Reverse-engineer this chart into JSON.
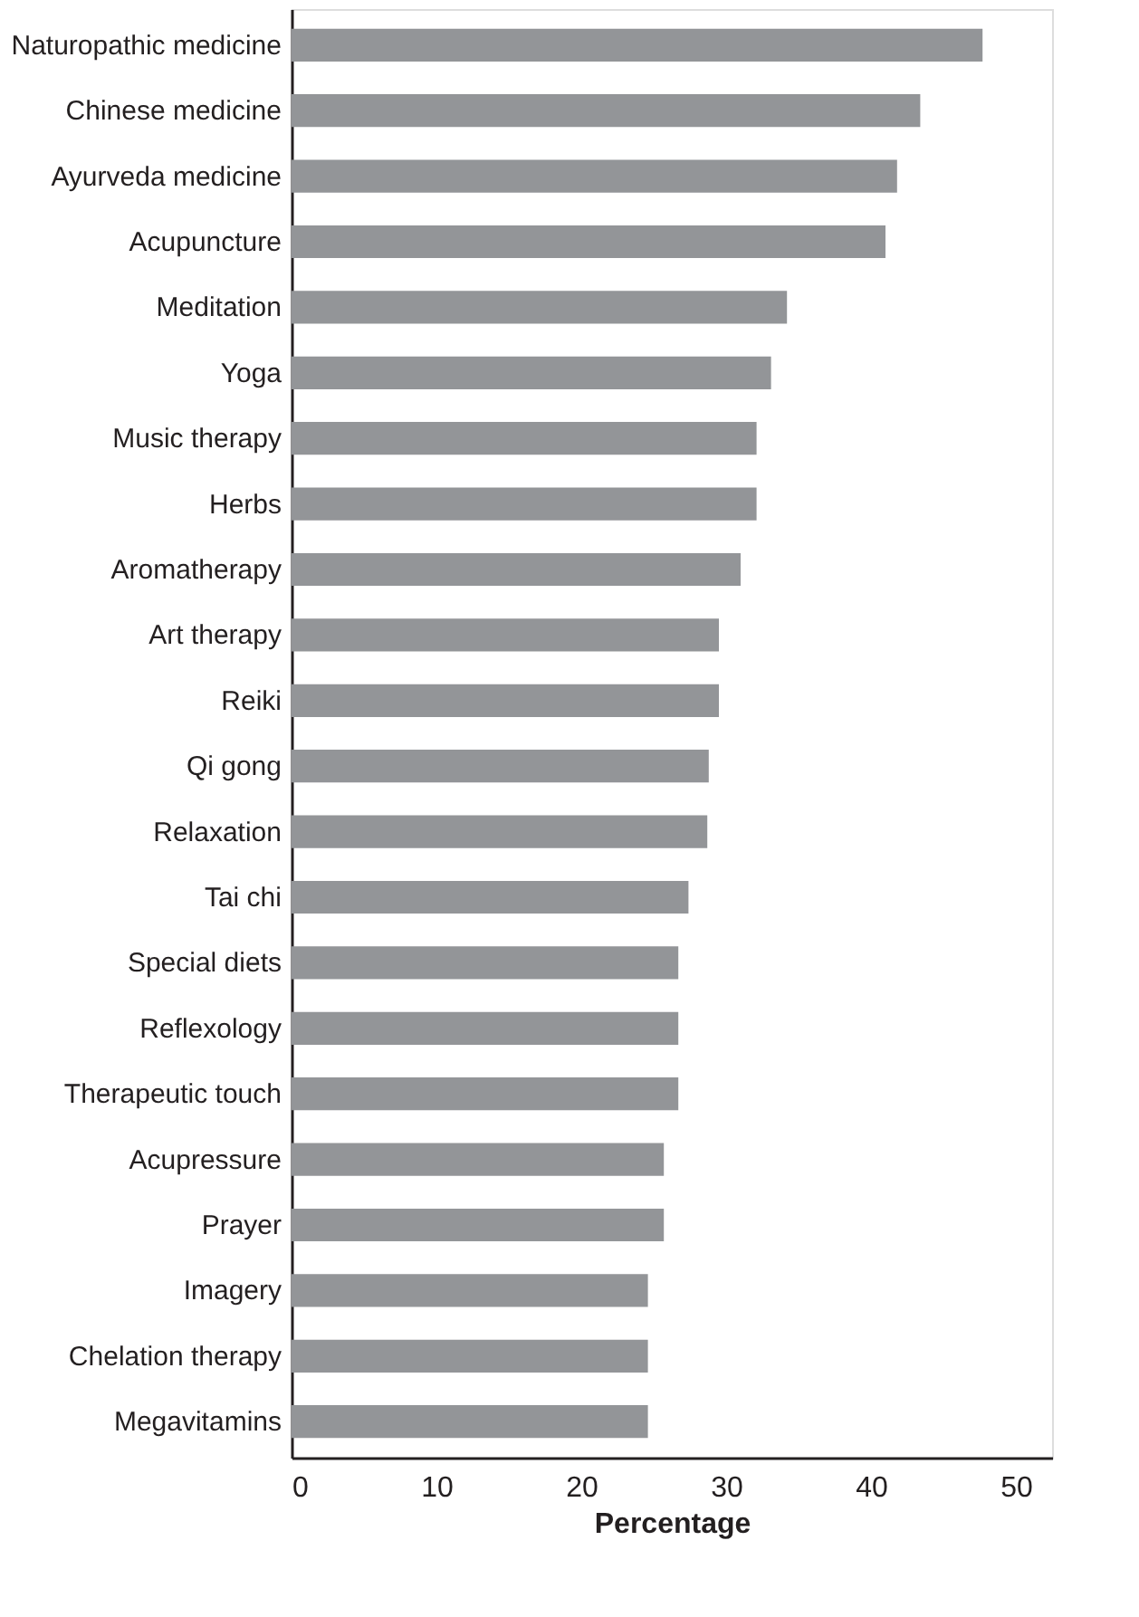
{
  "chart_data": {
    "type": "bar",
    "orientation": "horizontal",
    "xlabel": "Percentage",
    "categories": [
      "Naturopathic medicine",
      "Chinese medicine",
      "Ayurveda medicine",
      "Acupuncture",
      "Meditation",
      "Yoga",
      "Music therapy",
      "Herbs",
      "Aromatherapy",
      "Art therapy",
      "Reiki",
      "Qi gong",
      "Relaxation",
      "Tai chi",
      "Special diets",
      "Reflexology",
      "Therapeutic touch",
      "Acupressure",
      "Prayer",
      "Imagery",
      "Chelation therapy",
      "Megavitamins"
    ],
    "values": [
      47.7,
      43.4,
      41.8,
      41.0,
      34.2,
      33.1,
      32.1,
      32.1,
      31.0,
      29.5,
      29.5,
      28.8,
      28.7,
      27.4,
      26.7,
      26.7,
      26.7,
      25.7,
      25.7,
      24.6,
      24.6,
      24.6
    ],
    "color": "#939598",
    "xlim": [
      0,
      52.5
    ],
    "xticks": [
      0,
      10,
      20,
      30,
      40,
      50
    ],
    "grid": false,
    "legend": false
  }
}
